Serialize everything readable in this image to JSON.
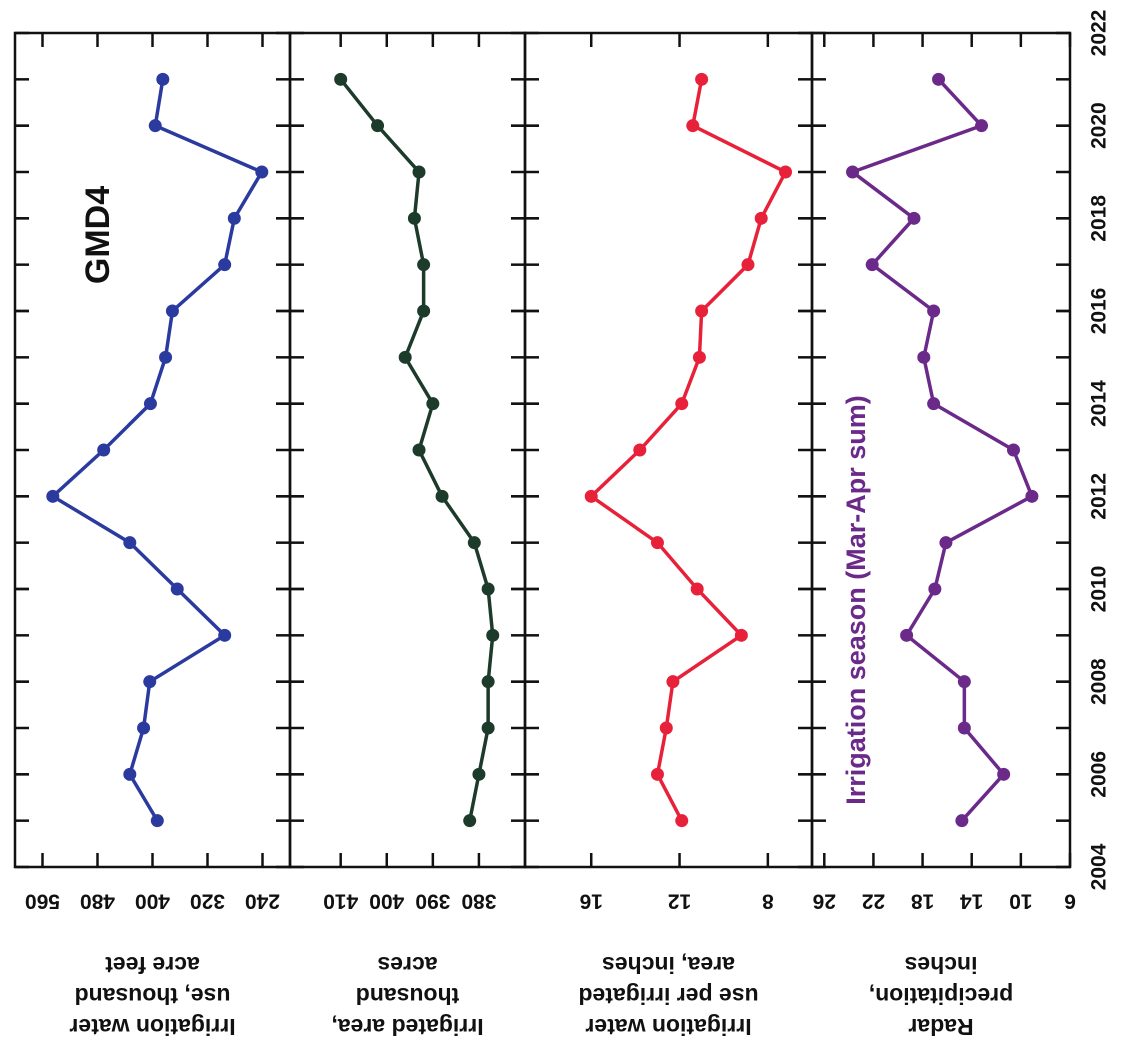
{
  "chart_data": [
    {
      "type": "line",
      "ylabel": [
        "Irrigation water",
        "use, thousand",
        "acre feet"
      ],
      "annotation": "GMD4",
      "x": [
        2005,
        2006,
        2007,
        2008,
        2009,
        2010,
        2011,
        2012,
        2013,
        2014,
        2015,
        2016,
        2017,
        2018,
        2019,
        2020,
        2021
      ],
      "values": [
        393,
        433,
        413,
        404,
        295,
        364,
        433,
        545,
        471,
        403,
        381,
        371,
        295,
        281,
        241,
        396,
        385
      ],
      "color": "#2b3a9e",
      "xlim": [
        2004,
        2022
      ],
      "xticks": [
        2004,
        2006,
        2008,
        2010,
        2012,
        2014,
        2016,
        2018,
        2020,
        2022
      ],
      "ylim": [
        200,
        600
      ],
      "yticks": [
        560,
        480,
        400,
        320,
        240
      ]
    },
    {
      "type": "line",
      "ylabel": [
        "Irrigated area,",
        "thousand",
        "acres"
      ],
      "x": [
        2005,
        2006,
        2007,
        2008,
        2009,
        2010,
        2011,
        2012,
        2013,
        2014,
        2015,
        2016,
        2017,
        2018,
        2019,
        2020,
        2021
      ],
      "values": [
        382,
        380,
        378,
        378,
        377,
        378,
        381,
        388,
        393,
        390,
        396,
        392,
        392,
        394,
        393,
        402,
        410
      ],
      "color": "#1d3b2a",
      "xlim": [
        2004,
        2022
      ],
      "xticks": [
        2004,
        2006,
        2008,
        2010,
        2012,
        2014,
        2016,
        2018,
        2020,
        2022
      ],
      "ylim": [
        370,
        421
      ],
      "yticks": [
        410,
        400,
        390,
        380
      ]
    },
    {
      "type": "line",
      "ylabel": [
        "Irrigation water",
        "use per irrigated",
        "area, inches"
      ],
      "x": [
        2005,
        2006,
        2007,
        2008,
        2009,
        2010,
        2011,
        2012,
        2013,
        2014,
        2015,
        2016,
        2017,
        2018,
        2019,
        2020,
        2021
      ],
      "values": [
        11.9,
        13.0,
        12.6,
        12.3,
        9.2,
        11.2,
        13.0,
        16.0,
        13.8,
        11.9,
        11.1,
        11.0,
        8.9,
        8.3,
        7.2,
        11.4,
        11.0
      ],
      "color": "#e8213a",
      "xlim": [
        2004,
        2022
      ],
      "xticks": [
        2004,
        2006,
        2008,
        2010,
        2012,
        2014,
        2016,
        2018,
        2020,
        2022
      ],
      "ylim": [
        6,
        19
      ],
      "yticks": [
        16,
        12,
        8
      ]
    },
    {
      "type": "line",
      "ylabel": [
        "Radar",
        "precipitation,",
        "inches"
      ],
      "annotation": "Irrigation season (Mar-Apr sum)",
      "x": [
        2005,
        2006,
        2007,
        2008,
        2009,
        2010,
        2011,
        2012,
        2013,
        2014,
        2015,
        2016,
        2017,
        2018,
        2019,
        2020,
        2021
      ],
      "values": [
        14.8,
        11.4,
        14.6,
        14.6,
        19.3,
        17.0,
        16.1,
        9.1,
        10.6,
        17.1,
        17.9,
        17.1,
        22.1,
        18.7,
        23.7,
        13.2,
        16.7
      ],
      "color": "#6b2a8a",
      "xlim": [
        2004,
        2022
      ],
      "xticks": [
        2004,
        2006,
        2008,
        2010,
        2012,
        2014,
        2016,
        2018,
        2020,
        2022
      ],
      "ylim": [
        6,
        27
      ],
      "yticks": [
        26,
        22,
        18,
        14,
        10,
        6
      ]
    }
  ]
}
